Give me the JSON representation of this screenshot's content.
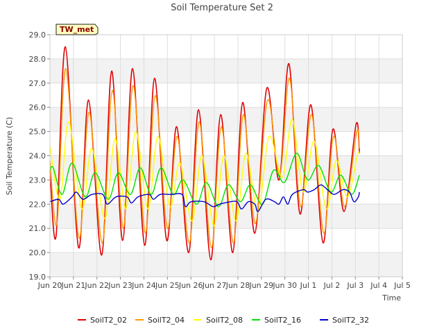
{
  "chart_data": {
    "type": "line",
    "title": "Soil Temperature Set 2",
    "xlabel": "Time",
    "ylabel": "Soil Temperature (C)",
    "badge": "TW_met",
    "ylim": [
      19.0,
      29.0
    ],
    "xlim": [
      0,
      16
    ],
    "yticks": [
      "19.0",
      "20.0",
      "21.0",
      "22.0",
      "23.0",
      "24.0",
      "25.0",
      "26.0",
      "27.0",
      "28.0",
      "29.0"
    ],
    "xticks": [
      "Jun 20",
      "Jun 21",
      "Jun 22",
      "Jun 23",
      "Jun 24",
      "Jun 25",
      "Jun 26",
      "Jun 27",
      "Jun 28",
      "Jun 29",
      "Jun 30",
      "Jul 1",
      "Jul 2",
      "Jul 3",
      "Jul 4",
      "Jul 5"
    ],
    "grid": true,
    "legend_position": "bottom",
    "series": [
      {
        "name": "SoilT2_02",
        "color": "#e00000",
        "width": 1.6,
        "points": [
          [
            0.0,
            23.4
          ],
          [
            0.28,
            20.7
          ],
          [
            0.7,
            28.5
          ],
          [
            1.3,
            20.2
          ],
          [
            1.75,
            26.3
          ],
          [
            2.35,
            19.9
          ],
          [
            2.8,
            27.5
          ],
          [
            3.3,
            20.5
          ],
          [
            3.75,
            27.6
          ],
          [
            4.3,
            20.3
          ],
          [
            4.75,
            27.2
          ],
          [
            5.3,
            20.5
          ],
          [
            5.75,
            25.2
          ],
          [
            6.3,
            20.0
          ],
          [
            6.75,
            25.9
          ],
          [
            7.3,
            19.7
          ],
          [
            7.75,
            25.7
          ],
          [
            8.3,
            20.0
          ],
          [
            8.75,
            26.2
          ],
          [
            9.3,
            20.8
          ],
          [
            9.85,
            26.8
          ],
          [
            10.4,
            23.0
          ],
          [
            10.85,
            27.8
          ],
          [
            11.35,
            21.6
          ],
          [
            11.85,
            26.1
          ],
          [
            12.4,
            20.4
          ],
          [
            12.85,
            25.1
          ],
          [
            13.35,
            21.7
          ],
          [
            13.9,
            25.3
          ],
          [
            14.05,
            24.1
          ]
        ]
      },
      {
        "name": "SoilT2_04",
        "color": "#ff9900",
        "width": 1.4,
        "points": [
          [
            0.0,
            23.8
          ],
          [
            0.32,
            21.2
          ],
          [
            0.72,
            27.6
          ],
          [
            1.32,
            20.6
          ],
          [
            1.78,
            25.8
          ],
          [
            2.38,
            20.4
          ],
          [
            2.83,
            26.7
          ],
          [
            3.33,
            21.0
          ],
          [
            3.78,
            26.9
          ],
          [
            4.33,
            20.8
          ],
          [
            4.78,
            26.5
          ],
          [
            5.33,
            21.0
          ],
          [
            5.78,
            24.8
          ],
          [
            6.33,
            20.4
          ],
          [
            6.78,
            25.4
          ],
          [
            7.33,
            20.2
          ],
          [
            7.78,
            25.2
          ],
          [
            8.33,
            20.4
          ],
          [
            8.78,
            25.7
          ],
          [
            9.33,
            21.2
          ],
          [
            9.88,
            26.3
          ],
          [
            10.43,
            23.2
          ],
          [
            10.88,
            27.2
          ],
          [
            11.38,
            21.9
          ],
          [
            11.88,
            25.7
          ],
          [
            12.43,
            20.8
          ],
          [
            12.88,
            24.8
          ],
          [
            13.38,
            21.9
          ],
          [
            13.93,
            25.0
          ],
          [
            14.05,
            24.3
          ]
        ]
      },
      {
        "name": "SoilT2_08",
        "color": "#ffff00",
        "width": 1.4,
        "points": [
          [
            0.0,
            24.4
          ],
          [
            0.45,
            22.2
          ],
          [
            0.85,
            25.4
          ],
          [
            1.45,
            21.8
          ],
          [
            1.9,
            24.3
          ],
          [
            2.5,
            21.4
          ],
          [
            2.95,
            24.7
          ],
          [
            3.45,
            21.8
          ],
          [
            3.9,
            25.0
          ],
          [
            4.45,
            21.8
          ],
          [
            4.9,
            24.8
          ],
          [
            5.45,
            21.9
          ],
          [
            5.9,
            23.7
          ],
          [
            6.45,
            21.3
          ],
          [
            6.9,
            24.0
          ],
          [
            7.45,
            21.1
          ],
          [
            7.9,
            24.0
          ],
          [
            8.45,
            21.3
          ],
          [
            8.9,
            24.1
          ],
          [
            9.45,
            21.7
          ],
          [
            9.95,
            24.8
          ],
          [
            10.55,
            23.1
          ],
          [
            11.0,
            25.5
          ],
          [
            11.5,
            22.5
          ],
          [
            12.0,
            24.6
          ],
          [
            12.55,
            21.8
          ],
          [
            13.0,
            23.8
          ],
          [
            13.5,
            22.3
          ],
          [
            13.95,
            24.0
          ],
          [
            14.05,
            24.1
          ]
        ]
      },
      {
        "name": "SoilT2_16",
        "color": "#00e000",
        "width": 1.4,
        "points": [
          [
            0.0,
            23.4
          ],
          [
            0.15,
            23.5
          ],
          [
            0.55,
            22.4
          ],
          [
            1.0,
            23.7
          ],
          [
            1.6,
            22.3
          ],
          [
            2.05,
            23.3
          ],
          [
            2.65,
            22.2
          ],
          [
            3.1,
            23.3
          ],
          [
            3.65,
            22.4
          ],
          [
            4.1,
            23.5
          ],
          [
            4.6,
            22.4
          ],
          [
            5.05,
            23.5
          ],
          [
            5.6,
            22.4
          ],
          [
            6.05,
            23.0
          ],
          [
            6.65,
            22.0
          ],
          [
            7.1,
            22.9
          ],
          [
            7.65,
            21.9
          ],
          [
            8.1,
            22.8
          ],
          [
            8.65,
            22.1
          ],
          [
            9.1,
            22.8
          ],
          [
            9.65,
            22.0
          ],
          [
            10.15,
            23.4
          ],
          [
            10.65,
            22.9
          ],
          [
            11.2,
            24.1
          ],
          [
            11.7,
            23.0
          ],
          [
            12.2,
            23.6
          ],
          [
            12.75,
            22.5
          ],
          [
            13.2,
            23.2
          ],
          [
            13.7,
            22.4
          ],
          [
            14.05,
            23.2
          ]
        ]
      },
      {
        "name": "SoilT2_32",
        "color": "#0000cc",
        "width": 1.4,
        "points": [
          [
            0.0,
            22.1
          ],
          [
            0.4,
            22.2
          ],
          [
            0.6,
            22.0
          ],
          [
            1.0,
            22.3
          ],
          [
            1.2,
            22.5
          ],
          [
            1.5,
            22.2
          ],
          [
            1.9,
            22.4
          ],
          [
            2.4,
            22.4
          ],
          [
            2.6,
            22.0
          ],
          [
            3.0,
            22.3
          ],
          [
            3.5,
            22.3
          ],
          [
            3.7,
            22.05
          ],
          [
            4.0,
            22.3
          ],
          [
            4.5,
            22.4
          ],
          [
            4.7,
            22.2
          ],
          [
            5.0,
            22.4
          ],
          [
            5.5,
            22.4
          ],
          [
            6.0,
            22.4
          ],
          [
            6.15,
            21.9
          ],
          [
            6.4,
            22.1
          ],
          [
            7.0,
            22.1
          ],
          [
            7.4,
            21.9
          ],
          [
            7.7,
            22.0
          ],
          [
            8.2,
            22.1
          ],
          [
            8.5,
            22.1
          ],
          [
            8.7,
            21.8
          ],
          [
            9.0,
            22.1
          ],
          [
            9.3,
            22.0
          ],
          [
            9.45,
            21.7
          ],
          [
            9.8,
            22.2
          ],
          [
            10.2,
            22.1
          ],
          [
            10.4,
            22.0
          ],
          [
            10.6,
            22.3
          ],
          [
            10.8,
            22.0
          ],
          [
            11.0,
            22.4
          ],
          [
            11.5,
            22.6
          ],
          [
            11.7,
            22.5
          ],
          [
            12.0,
            22.6
          ],
          [
            12.3,
            22.8
          ],
          [
            12.6,
            22.6
          ],
          [
            12.9,
            22.4
          ],
          [
            13.3,
            22.6
          ],
          [
            13.6,
            22.5
          ],
          [
            13.8,
            22.1
          ],
          [
            14.0,
            22.3
          ],
          [
            14.05,
            22.5
          ]
        ]
      }
    ]
  }
}
